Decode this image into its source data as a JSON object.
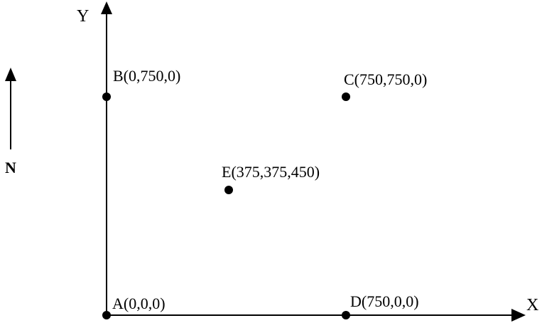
{
  "diagram": {
    "axis_x_label": "X",
    "axis_y_label": "Y",
    "north_label": "N",
    "points": [
      {
        "id": "A",
        "label": "A(0,0,0)"
      },
      {
        "id": "B",
        "label": "B(0,750,0)"
      },
      {
        "id": "C",
        "label": "C(750,750,0)"
      },
      {
        "id": "D",
        "label": "D(750,0,0)"
      },
      {
        "id": "E",
        "label": "E(375,375,450)"
      }
    ]
  }
}
